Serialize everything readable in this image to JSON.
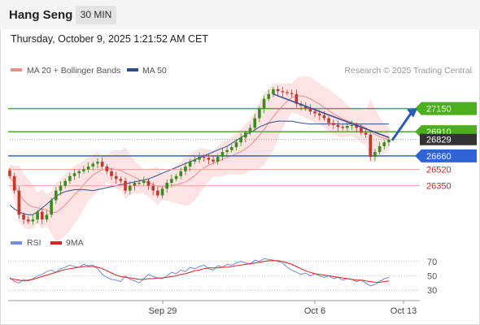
{
  "header": {
    "title": "Hang Seng",
    "timeframe": "30 MIN",
    "datetime": "Thursday, October 9, 2025 1:21:52 AM CET"
  },
  "legend": {
    "items": [
      {
        "label": "MA 20 + Bollinger Bands",
        "color": "#f28b8b"
      },
      {
        "label": "MA 50",
        "color": "#2c4f8c"
      }
    ],
    "credit": "Research © 2025 Trading Central"
  },
  "rsi_legend": {
    "items": [
      {
        "label": "RSI",
        "color": "#6f8de0"
      },
      {
        "label": "9MA",
        "color": "#e02020"
      }
    ]
  },
  "chart_data": [
    {
      "type": "candlestick",
      "title": "Hang Seng",
      "timeframe": "30 MIN",
      "x_tick_labels": [
        "Sep 29",
        "Oct 6",
        "Oct 13"
      ],
      "ylim": [
        25850,
        27450
      ],
      "price_levels": [
        {
          "value": 27150,
          "label": "27150",
          "style": "green-line",
          "color": "#4caf1e"
        },
        {
          "value": 26910,
          "label": "26910",
          "style": "green-line",
          "color": "#4caf1e"
        },
        {
          "value": 26829,
          "label": "26829",
          "style": "last-price",
          "color": "#333333"
        },
        {
          "value": 26660,
          "label": "26660",
          "style": "blue-line",
          "color": "#2f63d6"
        },
        {
          "value": 26520,
          "label": "26520",
          "style": "red-line",
          "color": "#f4a3a3"
        },
        {
          "value": 26350,
          "label": "26350",
          "style": "red-line",
          "color": "#f4a3a3"
        }
      ],
      "close_series": [
        26450,
        26300,
        26050,
        26000,
        25980,
        26000,
        26080,
        26000,
        26050,
        26200,
        26300,
        26350,
        26400,
        26450,
        26480,
        26500,
        26520,
        26550,
        26580,
        26600,
        26550,
        26500,
        26450,
        26420,
        26400,
        26300,
        26350,
        26380,
        26380,
        26400,
        26350,
        26300,
        26250,
        26320,
        26380,
        26420,
        26450,
        26500,
        26550,
        26600,
        26620,
        26650,
        26640,
        26620,
        26600,
        26650,
        26700,
        26720,
        26750,
        26800,
        26850,
        26900,
        26950,
        27050,
        27150,
        27250,
        27300,
        27350,
        27330,
        27320,
        27310,
        27300,
        27200,
        27180,
        27150,
        27120,
        27100,
        27080,
        27050,
        27000,
        26980,
        26960,
        26950,
        26970,
        26980,
        26950,
        26900,
        26880,
        26650,
        26700,
        26760,
        26800,
        26829
      ],
      "ma50_series": [
        26150,
        26110,
        26080,
        26060,
        26050,
        26050,
        26080,
        26120,
        26160,
        26200,
        26240,
        26270,
        26290,
        26300,
        26310,
        26310,
        26310,
        26305,
        26300,
        26310,
        26320,
        26330,
        26340,
        26350,
        26360,
        26370,
        26380,
        26390,
        26400,
        26410,
        26420,
        26440,
        26460,
        26480,
        26500,
        26520,
        26540,
        26560,
        26580,
        26600,
        26620,
        26640,
        26660,
        26680,
        26700,
        26720,
        26740,
        26760,
        26790,
        26820,
        26850,
        26880,
        26900,
        26930,
        26960,
        26980,
        27000,
        27010,
        27020,
        27020,
        27020,
        27020,
        27010,
        27000,
        26995,
        26990,
        26990,
        26990,
        26990,
        26990,
        26990,
        26990,
        26990,
        26990,
        26990,
        26990,
        26990,
        26990,
        26990,
        26990,
        26990,
        26990,
        26990
      ],
      "forecast_arrow": {
        "from": 26820,
        "to": 27150
      },
      "trendline": {
        "from": 27300,
        "to": 26850
      }
    },
    {
      "type": "line",
      "title": "RSI",
      "ylim": [
        20,
        80
      ],
      "y_ticks": [
        30,
        50,
        70
      ],
      "series": [
        {
          "name": "RSI",
          "color": "#6f8de0",
          "values": [
            48,
            42,
            40,
            45,
            43,
            46,
            50,
            52,
            56,
            58,
            55,
            60,
            62,
            65,
            63,
            62,
            66,
            64,
            65,
            60,
            52,
            48,
            45,
            44,
            42,
            50,
            45,
            43,
            40,
            46,
            52,
            49,
            47,
            46,
            50,
            55,
            53,
            58,
            56,
            62,
            60,
            63,
            65,
            60,
            58,
            64,
            62,
            66,
            65,
            68,
            70,
            68,
            66,
            72,
            70,
            74,
            73,
            72,
            70,
            68,
            62,
            58,
            55,
            52,
            54,
            50,
            53,
            50,
            48,
            50,
            46,
            48,
            44,
            46,
            45,
            42,
            44,
            40,
            36,
            38,
            42,
            46,
            48
          ]
        },
        {
          "name": "9MA",
          "color": "#e02020",
          "values": [
            46,
            45,
            44,
            43,
            44,
            45,
            47,
            49,
            51,
            53,
            55,
            57,
            59,
            60,
            61,
            62,
            63,
            63,
            63,
            62,
            60,
            57,
            54,
            51,
            49,
            48,
            47,
            46,
            45,
            45,
            46,
            46,
            47,
            47,
            48,
            49,
            50,
            52,
            53,
            55,
            57,
            58,
            60,
            61,
            61,
            61,
            62,
            62,
            63,
            64,
            65,
            66,
            67,
            68,
            69,
            70,
            71,
            71,
            71,
            70,
            68,
            66,
            63,
            60,
            57,
            55,
            53,
            52,
            51,
            50,
            49,
            48,
            47,
            46,
            45,
            44,
            44,
            43,
            42,
            41,
            41,
            42,
            43
          ]
        }
      ]
    }
  ]
}
